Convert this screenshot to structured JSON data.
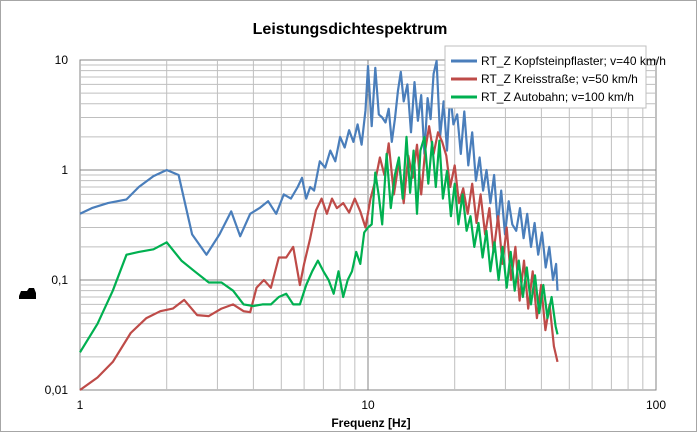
{
  "chart_data": {
    "type": "line",
    "title": "Leistungsdichtespektrum",
    "xlabel": "Frequenz [Hz]",
    "ylabel": "",
    "x_scale": "log",
    "y_scale": "log",
    "xlim": [
      1,
      100
    ],
    "ylim": [
      0.01,
      10
    ],
    "x_ticks": [
      {
        "value": 1,
        "label": "1"
      },
      {
        "value": 10,
        "label": "10"
      },
      {
        "value": 100,
        "label": "100"
      }
    ],
    "y_ticks": [
      {
        "value": 0.01,
        "label": "0,01"
      },
      {
        "value": 0.1,
        "label": "0,1"
      },
      {
        "value": 1,
        "label": "1"
      },
      {
        "value": 10,
        "label": "10"
      }
    ],
    "grid": true,
    "legend_position": "top-right",
    "series": [
      {
        "name": "RT_Z Kopfsteinpflaster; v=40 km/h",
        "color": "#4a7ebb",
        "x": [
          1,
          1.1,
          1.25,
          1.45,
          1.6,
          1.8,
          2,
          2.2,
          2.45,
          2.75,
          3.05,
          3.35,
          3.6,
          3.9,
          4.2,
          4.5,
          4.8,
          5.1,
          5.4,
          5.7,
          5.9,
          6.1,
          6.3,
          6.5,
          6.8,
          7.1,
          7.4,
          7.7,
          8,
          8.3,
          8.6,
          8.9,
          9.2,
          9.5,
          9.8,
          10,
          10.3,
          10.6,
          10.9,
          11.2,
          11.5,
          11.8,
          12.1,
          12.4,
          12.7,
          13,
          13.3,
          13.7,
          14.1,
          14.5,
          14.9,
          15.3,
          15.7,
          16.1,
          16.5,
          16.9,
          17.3,
          17.8,
          18.3,
          18.8,
          19.3,
          19.8,
          20.4,
          21,
          21.6,
          22.3,
          23,
          23.7,
          24.4,
          25.1,
          25.8,
          26.6,
          27.4,
          28.2,
          29,
          29.9,
          30.8,
          31.7,
          32.7,
          33.7,
          34.7,
          35.7,
          36.8,
          37.9,
          39,
          40.2,
          41.4,
          42.6,
          43.9,
          45,
          45.5
        ],
        "values": [
          0.4,
          0.45,
          0.5,
          0.54,
          0.7,
          0.88,
          1.0,
          0.9,
          0.26,
          0.17,
          0.26,
          0.42,
          0.25,
          0.4,
          0.45,
          0.52,
          0.4,
          0.6,
          0.55,
          0.7,
          0.85,
          0.55,
          0.7,
          0.65,
          1.2,
          1.05,
          1.5,
          1.2,
          2.0,
          1.6,
          2.3,
          1.8,
          2.6,
          1.7,
          3.5,
          8.8,
          2.5,
          8.5,
          3.2,
          3.0,
          2.7,
          3.6,
          1.8,
          2.9,
          5.2,
          7.8,
          4.2,
          6.0,
          2.2,
          6.3,
          2.8,
          4.8,
          1.4,
          4.5,
          2.9,
          7.5,
          9.8,
          2.0,
          4.2,
          1.5,
          5.0,
          2.6,
          3.2,
          1.4,
          3.4,
          1.1,
          2.2,
          0.8,
          1.3,
          0.65,
          1.0,
          0.5,
          0.9,
          0.32,
          0.65,
          0.26,
          0.52,
          0.32,
          0.28,
          0.45,
          0.24,
          0.4,
          0.2,
          0.33,
          0.17,
          0.27,
          0.13,
          0.2,
          0.1,
          0.14,
          0.08
        ]
      },
      {
        "name": "RT_Z Kreisstraße; v=50 km/h",
        "color": "#be4b48",
        "x": [
          1,
          1.15,
          1.3,
          1.5,
          1.7,
          1.9,
          2.1,
          2.3,
          2.55,
          2.8,
          3.1,
          3.4,
          3.7,
          3.9,
          4.1,
          4.35,
          4.6,
          4.9,
          5.2,
          5.5,
          5.8,
          6,
          6.3,
          6.6,
          6.9,
          7.2,
          7.5,
          7.8,
          8.2,
          8.6,
          9,
          9.4,
          9.8,
          10.2,
          10.6,
          11,
          11.4,
          11.8,
          12.3,
          12.8,
          13.3,
          13.8,
          14.3,
          14.8,
          15.3,
          15.8,
          16.3,
          16.9,
          17.5,
          18.1,
          18.7,
          19.3,
          20,
          20.7,
          21.4,
          22.2,
          23,
          23.8,
          24.6,
          25.5,
          26.4,
          27.3,
          28.3,
          29.3,
          30.3,
          31.4,
          32.5,
          33.6,
          34.8,
          36,
          37.3,
          38.6,
          39.9,
          41.3,
          42.7,
          44.2,
          45.5
        ],
        "values": [
          0.01,
          0.013,
          0.018,
          0.033,
          0.045,
          0.052,
          0.055,
          0.066,
          0.048,
          0.047,
          0.055,
          0.06,
          0.052,
          0.051,
          0.085,
          0.1,
          0.085,
          0.16,
          0.16,
          0.2,
          0.09,
          0.14,
          0.24,
          0.43,
          0.55,
          0.4,
          0.55,
          0.45,
          0.5,
          0.41,
          0.55,
          0.42,
          0.3,
          0.55,
          0.8,
          1.3,
          0.9,
          1.75,
          0.6,
          1.2,
          0.5,
          1.35,
          0.85,
          1.7,
          0.6,
          1.5,
          2.5,
          1.4,
          2.2,
          1.8,
          1.35,
          0.7,
          1.1,
          0.5,
          0.68,
          0.4,
          0.75,
          0.33,
          0.6,
          0.26,
          0.45,
          0.18,
          0.38,
          0.14,
          0.3,
          0.1,
          0.2,
          0.065,
          0.15,
          0.055,
          0.12,
          0.045,
          0.09,
          0.035,
          0.06,
          0.025,
          0.018
        ]
      },
      {
        "name": "RT_Z Autobahn; v=100 km/h",
        "color": "#00b050",
        "x": [
          1,
          1.15,
          1.3,
          1.45,
          1.6,
          1.8,
          2,
          2.25,
          2.5,
          2.8,
          3.1,
          3.4,
          3.7,
          4,
          4.3,
          4.6,
          4.9,
          5.2,
          5.5,
          5.8,
          6.1,
          6.4,
          6.7,
          7,
          7.3,
          7.6,
          7.9,
          8.2,
          8.5,
          8.8,
          9.1,
          9.4,
          9.7,
          10,
          10.3,
          10.6,
          10.9,
          11.2,
          11.6,
          12,
          12.4,
          12.8,
          13.2,
          13.6,
          14,
          14.4,
          14.8,
          15.2,
          15.7,
          16.2,
          16.7,
          17.2,
          17.7,
          18.2,
          18.8,
          19.4,
          20,
          20.6,
          21.3,
          22,
          22.7,
          23.4,
          24.2,
          25,
          25.8,
          26.6,
          27.5,
          28.4,
          29.3,
          30.3,
          31.3,
          32.3,
          33.4,
          34.5,
          35.6,
          36.8,
          38,
          39.3,
          40.6,
          42,
          43.4,
          44.8,
          45.5
        ],
        "values": [
          0.022,
          0.04,
          0.08,
          0.17,
          0.18,
          0.19,
          0.22,
          0.15,
          0.12,
          0.095,
          0.095,
          0.08,
          0.06,
          0.058,
          0.06,
          0.06,
          0.07,
          0.075,
          0.06,
          0.06,
          0.09,
          0.12,
          0.15,
          0.12,
          0.1,
          0.075,
          0.12,
          0.07,
          0.1,
          0.12,
          0.18,
          0.14,
          0.27,
          0.3,
          0.32,
          0.95,
          0.58,
          0.32,
          1.4,
          0.45,
          0.9,
          1.3,
          0.55,
          2.0,
          0.62,
          1.5,
          0.4,
          1.5,
          2.0,
          0.75,
          1.8,
          0.7,
          1.85,
          0.55,
          0.98,
          0.38,
          0.75,
          0.32,
          0.6,
          0.28,
          0.38,
          0.2,
          0.33,
          0.16,
          0.28,
          0.12,
          0.22,
          0.1,
          0.2,
          0.085,
          0.18,
          0.08,
          0.15,
          0.07,
          0.13,
          0.06,
          0.11,
          0.05,
          0.09,
          0.045,
          0.07,
          0.038,
          0.032
        ]
      }
    ]
  }
}
